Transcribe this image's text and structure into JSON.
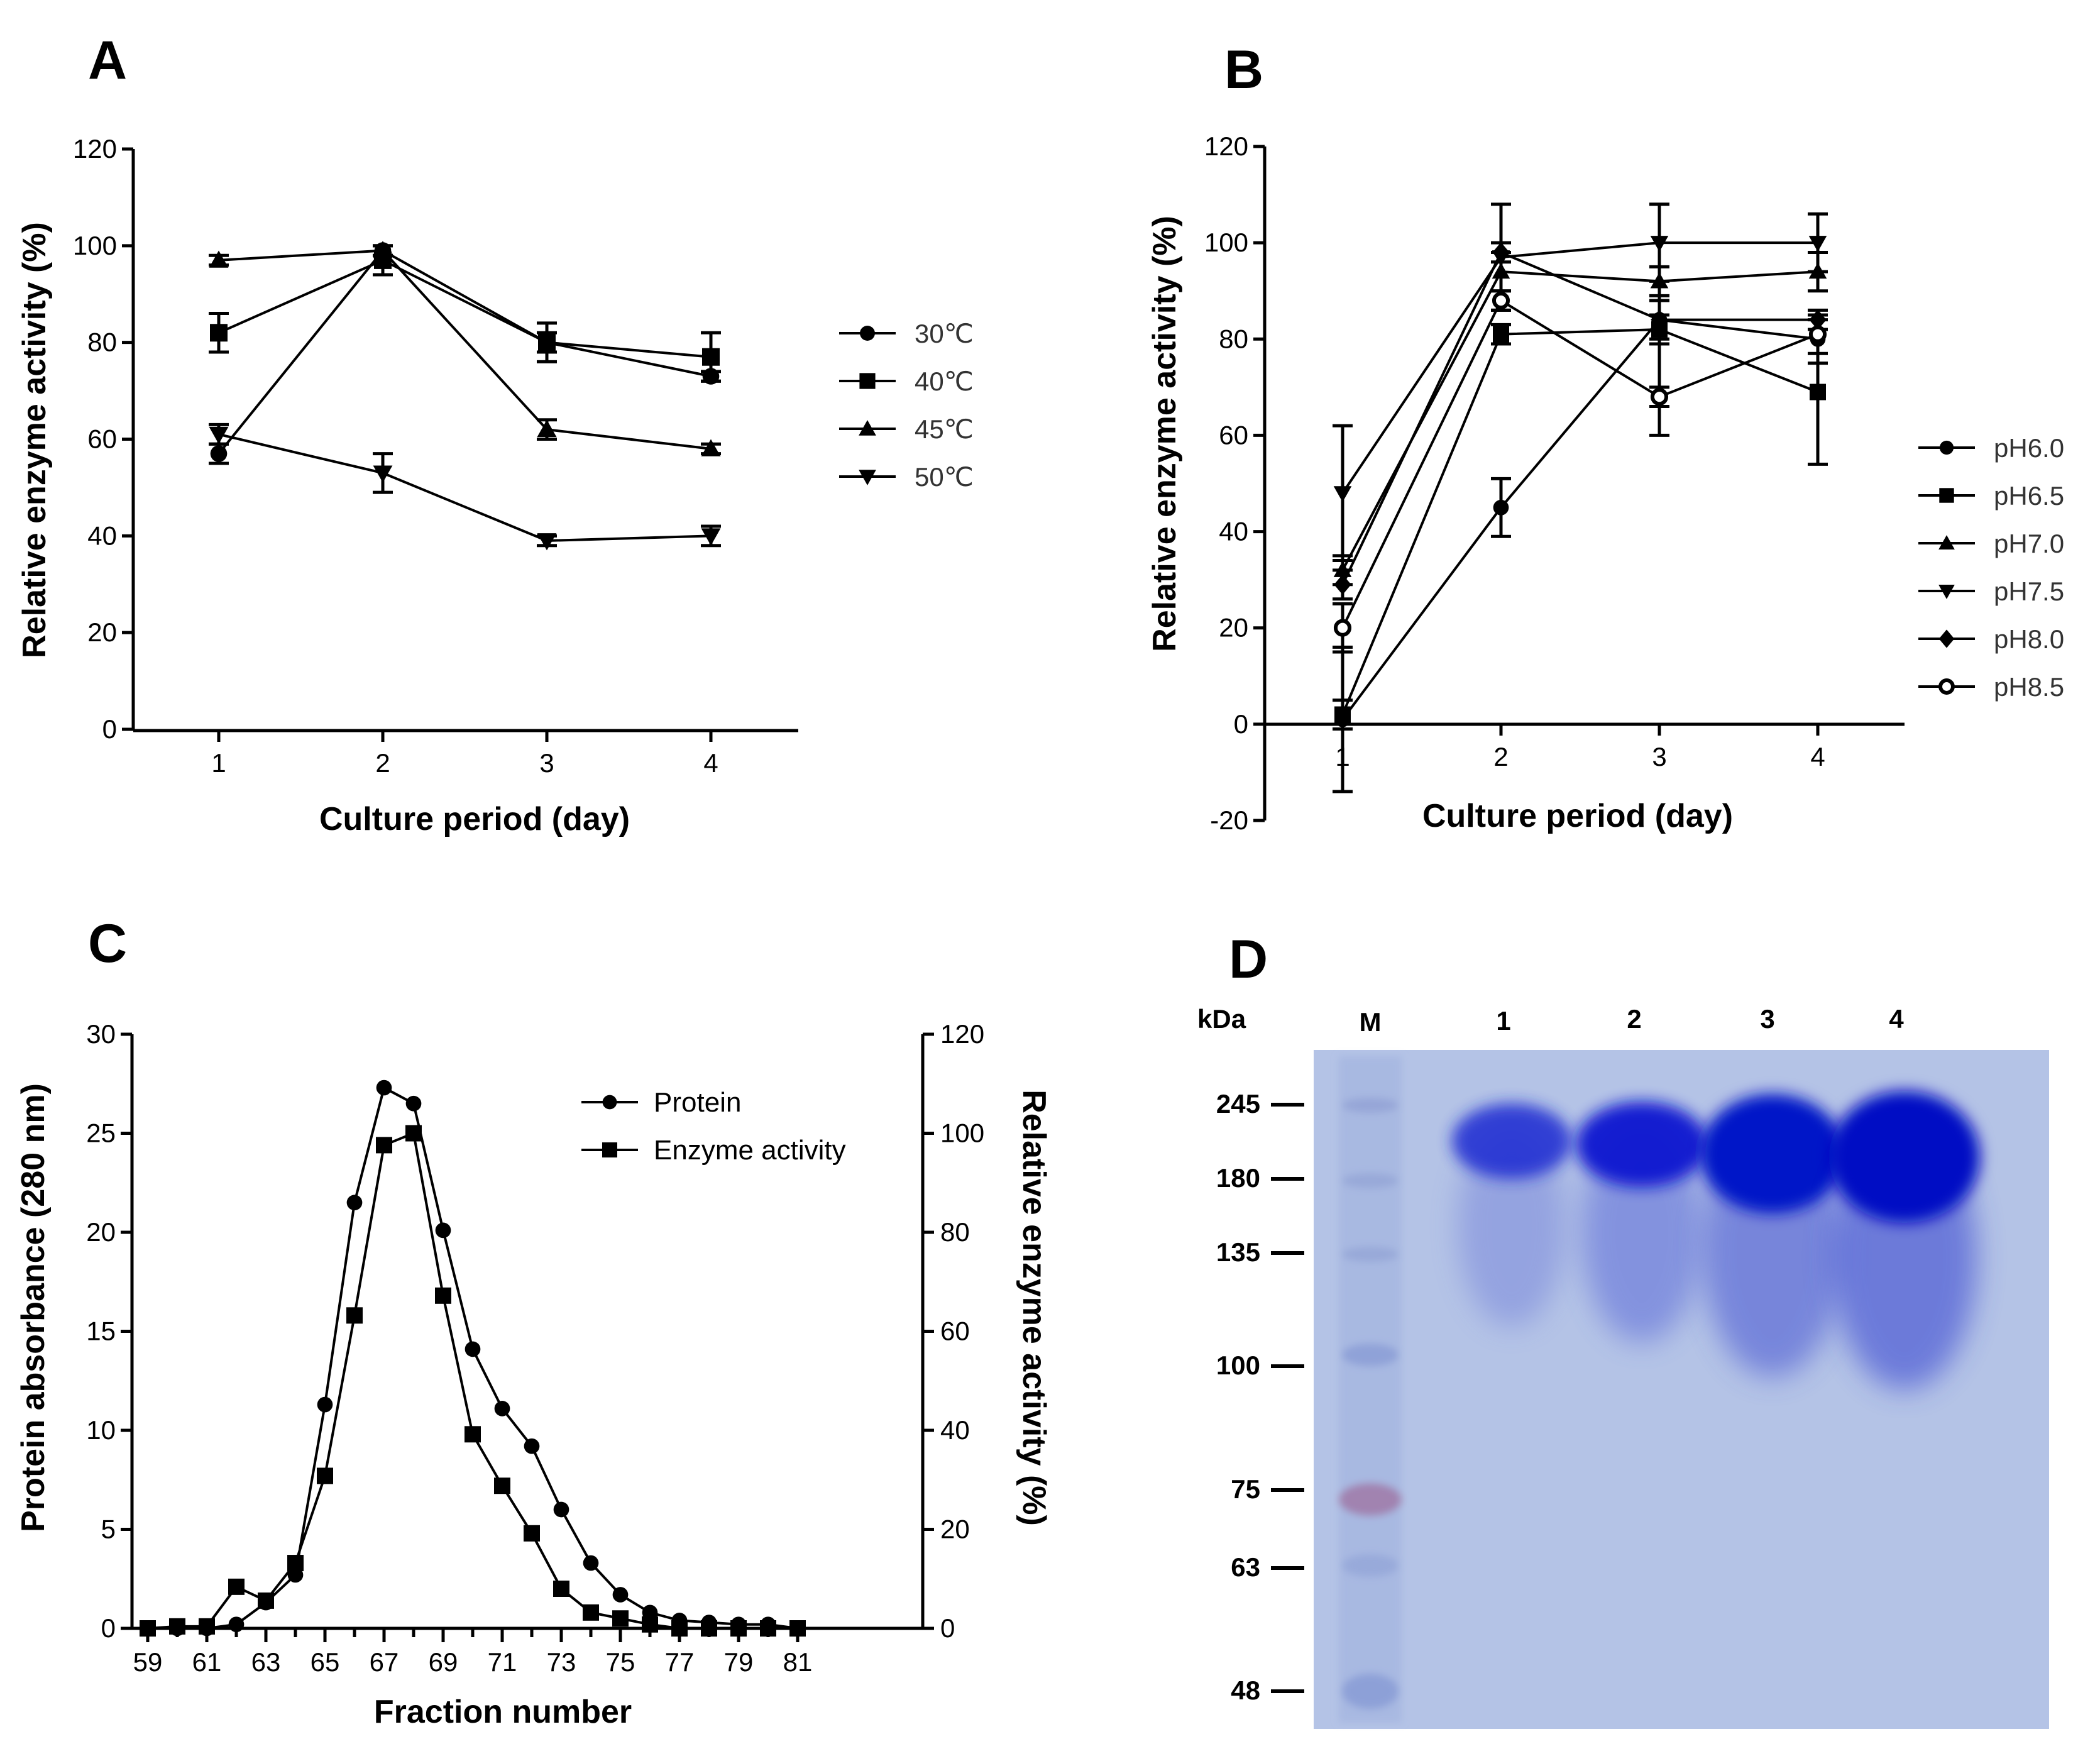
{
  "panels": {
    "A": {
      "letter": "A",
      "chart_data": {
        "type": "line",
        "xlabel": "Culture period (day)",
        "ylabel": "Relative enzyme activity (%)",
        "x": [
          1,
          2,
          3,
          4
        ],
        "x_ticks": [
          "1",
          "2",
          "3",
          "4"
        ],
        "ylim": [
          0,
          120
        ],
        "y_ticks": [
          "0",
          "20",
          "40",
          "60",
          "80",
          "100",
          "120"
        ],
        "legend_position": "right",
        "series": [
          {
            "name": "30℃",
            "marker": "circle",
            "values": [
              57,
              99,
              80,
              73
            ],
            "errors": [
              2,
              1,
              2,
              1
            ]
          },
          {
            "name": "40℃",
            "marker": "square",
            "values": [
              82,
              97,
              80,
              77
            ],
            "errors": [
              4,
              3,
              4,
              5
            ]
          },
          {
            "name": "45℃",
            "marker": "triangle-up",
            "values": [
              97,
              99,
              62,
              58
            ],
            "errors": [
              1,
              1,
              2,
              1
            ]
          },
          {
            "name": "50℃",
            "marker": "triangle-down",
            "values": [
              61,
              53,
              39,
              40
            ],
            "errors": [
              2,
              4,
              1,
              2
            ]
          }
        ]
      }
    },
    "B": {
      "letter": "B",
      "chart_data": {
        "type": "line",
        "xlabel": "Culture period (day)",
        "ylabel": "Relative enzyme activity (%)",
        "x": [
          1,
          2,
          3,
          4
        ],
        "x_ticks": [
          "1",
          "2",
          "3",
          "4"
        ],
        "ylim": [
          -20,
          120
        ],
        "y_ticks": [
          "-20",
          "0",
          "20",
          "40",
          "60",
          "80",
          "100",
          "120"
        ],
        "legend_position": "right",
        "series": [
          {
            "name": "pH6.0",
            "marker": "circle",
            "values": [
              1,
              45,
              84,
              80
            ],
            "errors": [
              15,
              6,
              4,
              5
            ]
          },
          {
            "name": "pH6.5",
            "marker": "square",
            "values": [
              2,
              81,
              82,
              69
            ],
            "errors": [
              3,
              2,
              3,
              15
            ]
          },
          {
            "name": "pH7.0",
            "marker": "triangle-up",
            "values": [
              32,
              94,
              92,
              94
            ],
            "errors": [
              3,
              4,
              3,
              4
            ]
          },
          {
            "name": "pH7.5",
            "marker": "triangle-down",
            "values": [
              48,
              97,
              100,
              100
            ],
            "errors": [
              14,
              11,
              8,
              6
            ]
          },
          {
            "name": "pH8.0",
            "marker": "diamond",
            "values": [
              29,
              98,
              84,
              84
            ],
            "errors": [
              3,
              2,
              24,
              2
            ]
          },
          {
            "name": "pH8.5",
            "marker": "circle-open",
            "values": [
              20,
              88,
              68,
              81
            ],
            "errors": [
              5,
              2,
              2,
              4
            ]
          }
        ]
      }
    },
    "C": {
      "letter": "C",
      "chart_data": {
        "type": "line",
        "xlabel": "Fraction number",
        "ylabel": "Protein absorbance (280 nm)",
        "ylabel_right": "Relative enzyme activity (%)",
        "x": [
          59,
          60,
          61,
          62,
          63,
          64,
          65,
          66,
          67,
          68,
          69,
          70,
          71,
          72,
          73,
          74,
          75,
          76,
          77,
          78,
          79,
          80,
          81
        ],
        "x_ticks": [
          "59",
          "61",
          "63",
          "65",
          "67",
          "69",
          "71",
          "73",
          "75",
          "77",
          "79",
          "81"
        ],
        "ylim": [
          0,
          30
        ],
        "ylim_right": [
          0,
          120
        ],
        "y_ticks": [
          "0",
          "5",
          "10",
          "15",
          "20",
          "25",
          "30"
        ],
        "y_ticks_right": [
          "0",
          "20",
          "40",
          "60",
          "80",
          "100",
          "120"
        ],
        "legend_position": "top-right",
        "series": [
          {
            "name": "Protein",
            "marker": "circle",
            "axis": "left",
            "values": [
              0,
              0,
              0,
              0.2,
              1.3,
              2.7,
              11.3,
              21.5,
              27.3,
              26.5,
              20.1,
              14.1,
              11.1,
              9.2,
              6.0,
              3.3,
              1.7,
              0.8,
              0.4,
              0.3,
              0.2,
              0.2,
              0
            ]
          },
          {
            "name": "Enzyme activity",
            "marker": "square",
            "axis": "right",
            "values": [
              0,
              0.4,
              0.4,
              8.4,
              5.6,
              13.2,
              30.8,
              63.2,
              97.6,
              100,
              67.2,
              39.2,
              28.8,
              19.2,
              8.0,
              3.2,
              2.0,
              0.8,
              0,
              0,
              0,
              0,
              0
            ]
          }
        ]
      }
    },
    "D": {
      "letter": "D",
      "gel": {
        "unit_label": "kDa",
        "lane_labels": [
          "M",
          "1",
          "2",
          "3",
          "4"
        ],
        "marker_bands": [
          "245",
          "180",
          "135",
          "100",
          "75",
          "63",
          "48"
        ],
        "colors": {
          "gel": "#b4c3e6",
          "band": "#0a16c8",
          "ladder": "#8a9ad0",
          "ladder_75": "#a07aa8"
        }
      }
    }
  }
}
